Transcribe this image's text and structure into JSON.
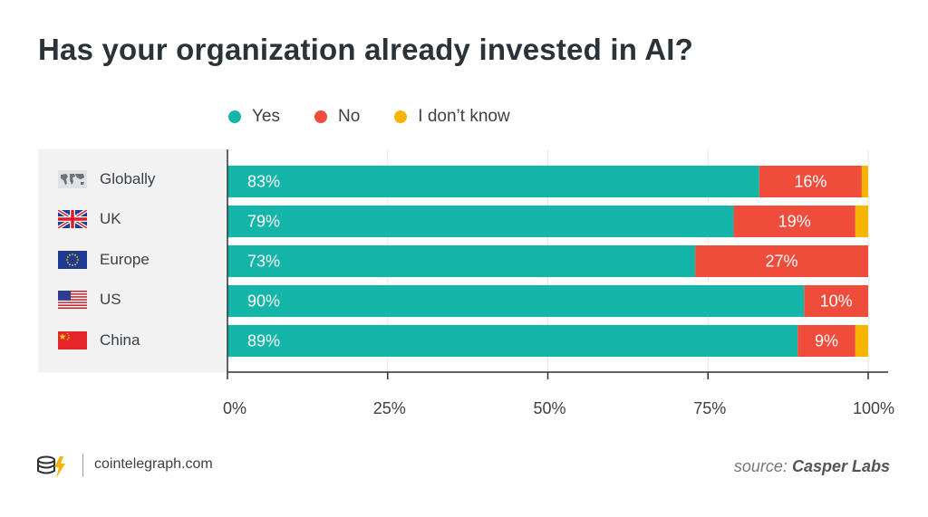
{
  "title": "Has your organization already invested in AI?",
  "legend": [
    {
      "label": "Yes",
      "color": "#16b5a9"
    },
    {
      "label": "No",
      "color": "#f04c3b"
    },
    {
      "label": "I don’t know",
      "color": "#f7b500"
    }
  ],
  "countries": [
    {
      "name": "Globally",
      "flag": "world-map-icon"
    },
    {
      "name": "UK",
      "flag": "uk-flag-icon"
    },
    {
      "name": "Europe",
      "flag": "eu-flag-icon"
    },
    {
      "name": "US",
      "flag": "us-flag-icon"
    },
    {
      "name": "China",
      "flag": "china-flag-icon"
    }
  ],
  "chart_data": {
    "type": "bar",
    "orientation": "horizontal",
    "stacked": true,
    "title": "Has your organization already invested in AI?",
    "categories": [
      "Globally",
      "UK",
      "Europe",
      "US",
      "China"
    ],
    "series": [
      {
        "name": "Yes",
        "color": "#16b5a9",
        "values": [
          83,
          79,
          73,
          90,
          89
        ],
        "labels": [
          "83%",
          "79%",
          "73%",
          "90%",
          "89%"
        ]
      },
      {
        "name": "No",
        "color": "#f04c3b",
        "values": [
          16,
          19,
          27,
          10,
          9
        ],
        "labels": [
          "16%",
          "19%",
          "27%",
          "10%",
          "9%"
        ]
      },
      {
        "name": "I don’t know",
        "color": "#f7b500",
        "values": [
          1,
          2,
          0,
          0,
          2
        ],
        "labels": [
          "",
          "",
          "",
          "",
          ""
        ]
      }
    ],
    "xlim": [
      0,
      100
    ],
    "xticks": [
      0,
      25,
      50,
      75,
      100
    ],
    "xtick_labels": [
      "0%",
      "25%",
      "50%",
      "75%",
      "100%"
    ],
    "grid": true,
    "legend_position": "top"
  },
  "footer": {
    "site": "cointelegraph.com",
    "source_prefix": "source:",
    "source_name": "Casper Labs"
  }
}
